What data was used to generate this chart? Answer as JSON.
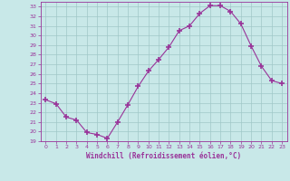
{
  "x": [
    0,
    1,
    2,
    3,
    4,
    5,
    6,
    7,
    8,
    9,
    10,
    11,
    12,
    13,
    14,
    15,
    16,
    17,
    18,
    19,
    20,
    21,
    22,
    23
  ],
  "y": [
    23.3,
    22.9,
    21.5,
    21.2,
    19.9,
    19.7,
    19.3,
    21.0,
    22.8,
    24.7,
    26.3,
    27.5,
    28.8,
    30.5,
    31.0,
    32.3,
    33.1,
    33.1,
    32.5,
    31.2,
    28.9,
    26.8,
    25.3,
    25.0
  ],
  "line_color": "#993399",
  "marker": "+",
  "marker_size": 4,
  "marker_lw": 1.2,
  "bg_color": "#c8e8e8",
  "grid_color": "#a0c8c8",
  "xlabel": "Windchill (Refroidissement éolien,°C)",
  "xlabel_color": "#993399",
  "ylim": [
    19,
    33.5
  ],
  "yticks": [
    19,
    20,
    21,
    22,
    23,
    24,
    25,
    26,
    27,
    28,
    29,
    30,
    31,
    32,
    33
  ],
  "xticks": [
    0,
    1,
    2,
    3,
    4,
    5,
    6,
    7,
    8,
    9,
    10,
    11,
    12,
    13,
    14,
    15,
    16,
    17,
    18,
    19,
    20,
    21,
    22,
    23
  ],
  "tick_color": "#993399",
  "spine_color": "#993399",
  "line_width": 0.8
}
